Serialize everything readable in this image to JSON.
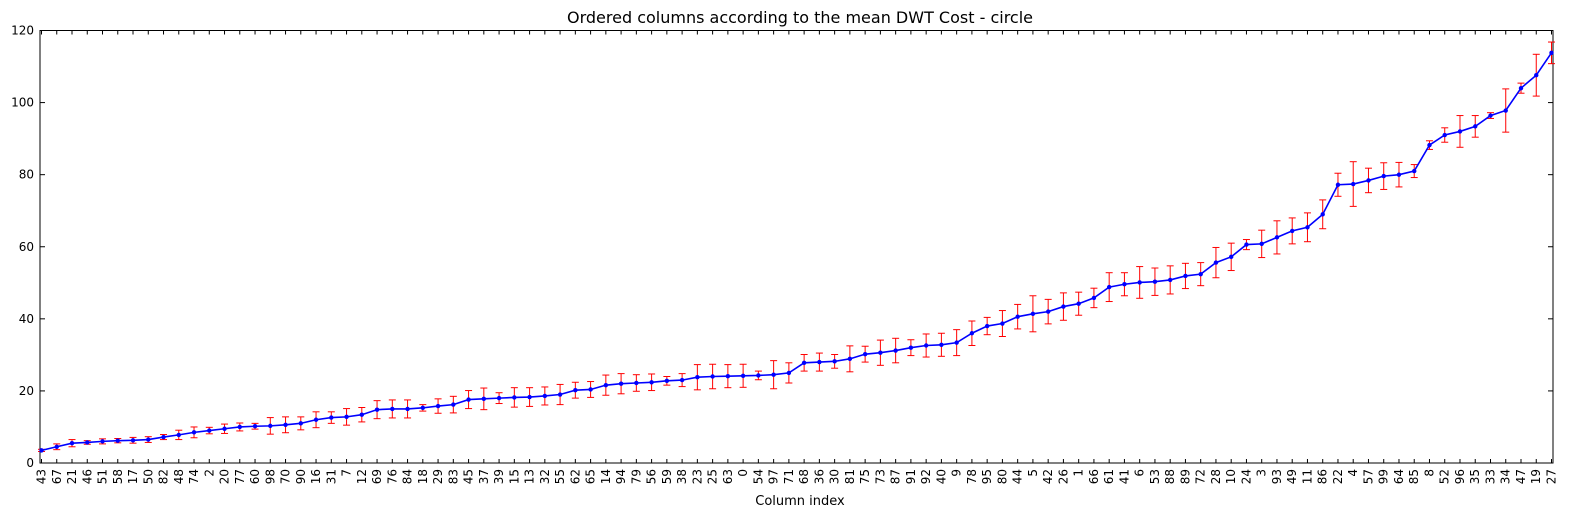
{
  "chart_data": {
    "type": "line",
    "title": "Ordered columns according to the mean DWT Cost - circle",
    "xlabel": "Column index",
    "ylabel": "",
    "ylim": [
      0,
      120
    ],
    "yticks": [
      0,
      20,
      40,
      60,
      80,
      100,
      120
    ],
    "grid": false,
    "legend": "none",
    "colors": {
      "line": "#0000ff",
      "errorbar": "#ff0000",
      "marker": "#0000ff",
      "axes": "#000000"
    },
    "categories": [
      "43",
      "67",
      "21",
      "46",
      "51",
      "58",
      "17",
      "50",
      "82",
      "48",
      "74",
      "2",
      "20",
      "77",
      "60",
      "98",
      "70",
      "90",
      "16",
      "31",
      "7",
      "12",
      "69",
      "76",
      "84",
      "18",
      "29",
      "83",
      "45",
      "37",
      "39",
      "15",
      "13",
      "32",
      "55",
      "62",
      "65",
      "14",
      "94",
      "79",
      "56",
      "59",
      "38",
      "23",
      "25",
      "63",
      "0",
      "54",
      "97",
      "71",
      "68",
      "36",
      "30",
      "81",
      "75",
      "73",
      "87",
      "91",
      "92",
      "40",
      "9",
      "78",
      "95",
      "80",
      "44",
      "5",
      "42",
      "26",
      "1",
      "66",
      "61",
      "41",
      "6",
      "53",
      "88",
      "89",
      "72",
      "28",
      "10",
      "24",
      "3",
      "93",
      "49",
      "11",
      "86",
      "22",
      "4",
      "57",
      "99",
      "64",
      "85",
      "8",
      "52",
      "96",
      "35",
      "33",
      "34",
      "47",
      "19",
      "27"
    ],
    "series": [
      {
        "values": [
          3.5,
          4.5,
          5.5,
          5.7,
          6.0,
          6.2,
          6.3,
          6.5,
          7.2,
          7.8,
          8.5,
          9.0,
          9.5,
          10.0,
          10.2,
          10.3,
          10.6,
          11.0,
          12.0,
          12.6,
          12.8,
          13.4,
          14.8,
          15.0,
          15.0,
          15.3,
          15.8,
          16.2,
          17.6,
          17.8,
          18.0,
          18.2,
          18.3,
          18.6,
          19.0,
          20.2,
          20.4,
          21.6,
          22.0,
          22.2,
          22.4,
          22.8,
          23.0,
          23.8,
          24.0,
          24.1,
          24.2,
          24.3,
          24.5,
          25.0,
          27.8,
          28.0,
          28.2,
          28.9,
          30.2,
          30.6,
          31.2,
          32.0,
          32.6,
          32.8,
          33.4,
          36.0,
          38.0,
          38.7,
          40.6,
          41.4,
          42.0,
          43.4,
          44.2,
          45.8,
          48.8,
          49.6,
          50.1,
          50.3,
          50.8,
          51.9,
          52.4,
          55.6,
          57.2,
          60.6,
          60.8,
          62.6,
          64.4,
          65.4,
          69.0,
          77.2,
          77.4,
          78.4,
          79.6,
          80.0,
          81.0,
          88.2,
          91.0,
          92.0,
          93.4,
          96.4,
          97.8,
          104.0,
          107.6,
          113.8
        ],
        "errors": [
          0.3,
          0.8,
          1.0,
          0.5,
          0.7,
          0.6,
          0.8,
          0.8,
          0.7,
          1.3,
          1.5,
          0.9,
          1.3,
          1.1,
          0.8,
          2.3,
          2.2,
          1.8,
          2.2,
          1.6,
          2.3,
          2.0,
          2.5,
          2.5,
          2.5,
          0.9,
          2.0,
          2.3,
          2.5,
          3.0,
          1.5,
          2.7,
          2.6,
          2.5,
          2.8,
          2.2,
          2.2,
          2.8,
          2.8,
          2.3,
          2.3,
          1.2,
          1.8,
          3.5,
          3.4,
          3.2,
          3.2,
          1.2,
          3.9,
          2.8,
          2.3,
          2.5,
          1.9,
          3.6,
          2.2,
          3.5,
          3.4,
          2.2,
          3.2,
          3.2,
          3.6,
          3.4,
          2.4,
          3.6,
          3.4,
          5.0,
          3.4,
          3.8,
          3.2,
          2.7,
          4.0,
          3.2,
          4.4,
          3.8,
          3.9,
          3.5,
          3.2,
          4.2,
          3.8,
          1.4,
          3.8,
          4.6,
          3.6,
          4.0,
          4.0,
          3.2,
          6.2,
          3.4,
          3.7,
          3.4,
          1.8,
          1.2,
          2.0,
          4.4,
          3.0,
          0.8,
          6.0,
          1.4,
          5.8,
          3.0
        ]
      }
    ]
  }
}
